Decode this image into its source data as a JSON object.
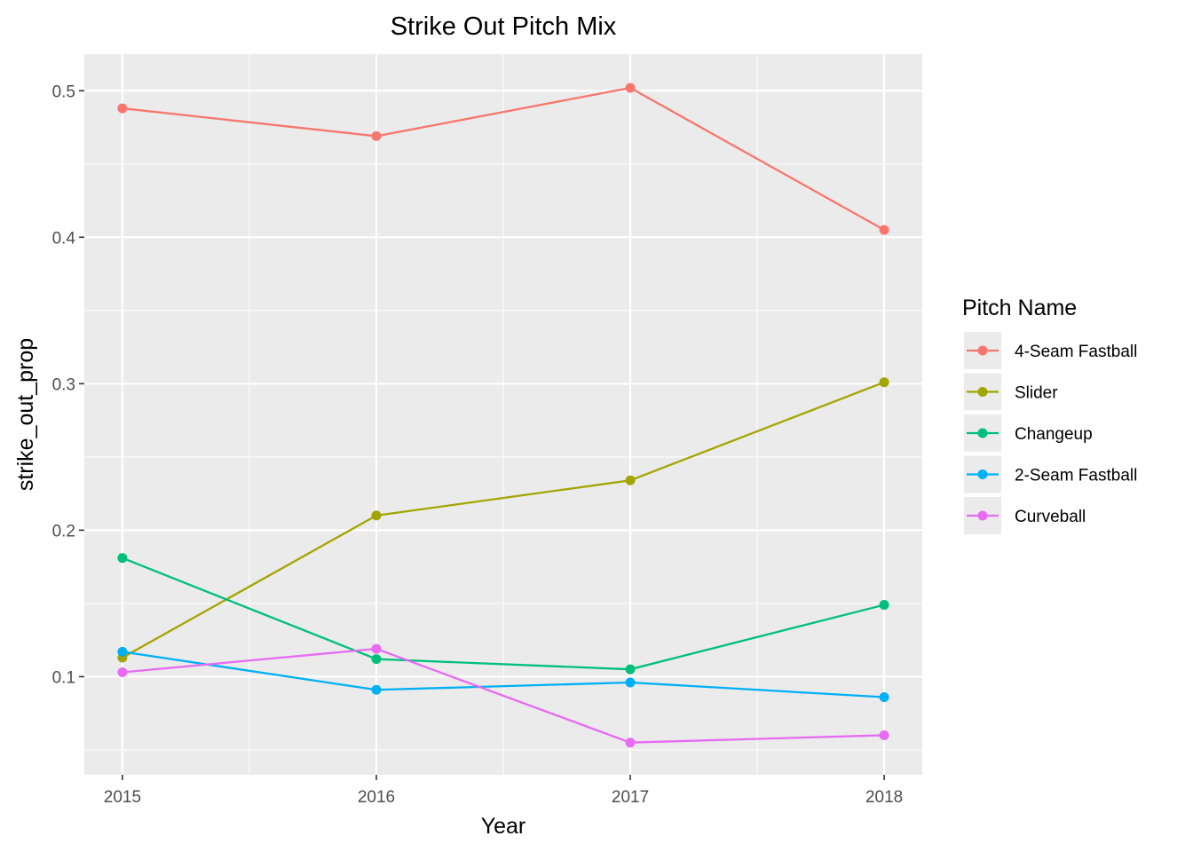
{
  "chart_data": {
    "type": "line",
    "title": "Strike Out Pitch Mix",
    "xlabel": "Year",
    "ylabel": "strike_out_prop",
    "x": [
      2015,
      2016,
      2017,
      2018
    ],
    "x_tick_labels": [
      "2015",
      "2016",
      "2017",
      "2018"
    ],
    "xlim": [
      2014.85,
      2018.15
    ],
    "ylim": [
      0.033,
      0.525
    ],
    "y_ticks": [
      0.1,
      0.2,
      0.3,
      0.4,
      0.5
    ],
    "y_tick_labels": [
      "0.1",
      "0.2",
      "0.3",
      "0.4",
      "0.5"
    ],
    "grid": true,
    "legend": {
      "title": "Pitch Name",
      "placement": "right"
    },
    "series": [
      {
        "name": "4-Seam Fastball",
        "color": "#F8766D",
        "values": [
          0.488,
          0.469,
          0.502,
          0.405
        ]
      },
      {
        "name": "Slider",
        "color": "#A3A500",
        "values": [
          0.113,
          0.21,
          0.234,
          0.301
        ]
      },
      {
        "name": "Changeup",
        "color": "#00BF7D",
        "values": [
          0.181,
          0.112,
          0.105,
          0.149
        ]
      },
      {
        "name": "2-Seam Fastball",
        "color": "#00B0F6",
        "values": [
          0.117,
          0.091,
          0.096,
          0.086
        ]
      },
      {
        "name": "Curveball",
        "color": "#E76BF3",
        "values": [
          0.103,
          0.119,
          0.055,
          0.06
        ]
      }
    ]
  }
}
